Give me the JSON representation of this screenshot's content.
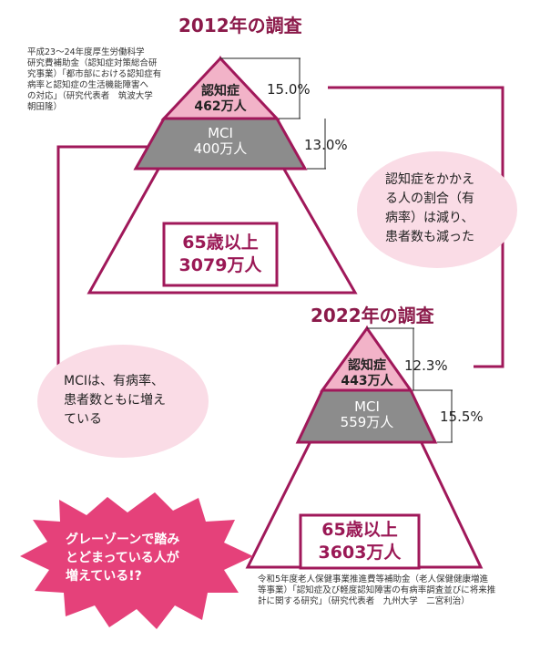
{
  "survey_2012": {
    "title": "2012年の調査",
    "source_lines": [
      "平成23～24年度厚生労働科学",
      "研究費補助金（認知症対策総合研",
      "究事業）「都市部における認知症有",
      "病率と認知症の生活機能障害へ",
      "の対応」（研究代表者　筑波大学",
      "朝田隆）"
    ],
    "dementia": {
      "label": "認知症",
      "value": "462万人",
      "rate": "15.0%"
    },
    "mci": {
      "label": "MCI",
      "value": "400万人",
      "rate": "13.0%"
    },
    "elderly": {
      "label": "65歳以上",
      "value": "3079万人"
    }
  },
  "survey_2022": {
    "title": "2022年の調査",
    "source_lines": [
      "令和5年度老人保健事業推進費等補助金（老人保健健康増進",
      "等事業）「認知症及び軽度認知障害の有病率調査並びに将来推",
      "計に関する研究」（研究代表者　九州大学　二宮利治）"
    ],
    "dementia": {
      "label": "認知症",
      "value": "443万人",
      "rate": "12.3%"
    },
    "mci": {
      "label": "MCI",
      "value": "559万人",
      "rate": "15.5%"
    },
    "elderly": {
      "label": "65歳以上",
      "value": "3603万人"
    }
  },
  "bubbles": {
    "dementia_note": [
      "認知症をかかえ",
      "る人の割合（有",
      "病率）は減り、",
      "患者数も減った"
    ],
    "mci_note": [
      "MCIは、有病率、",
      "患者数ともに増え",
      "ている"
    ]
  },
  "burst": {
    "lines": [
      "グレーゾーンで踏み",
      "とどまっている人が",
      "増えている!?"
    ]
  },
  "colors": {
    "accent": "#a0185a",
    "dementia_fill": "#f2b3c8",
    "mci_fill": "#8c8c8c",
    "bubble_fill": "#fadce6",
    "burst_fill": "#e5417a"
  }
}
